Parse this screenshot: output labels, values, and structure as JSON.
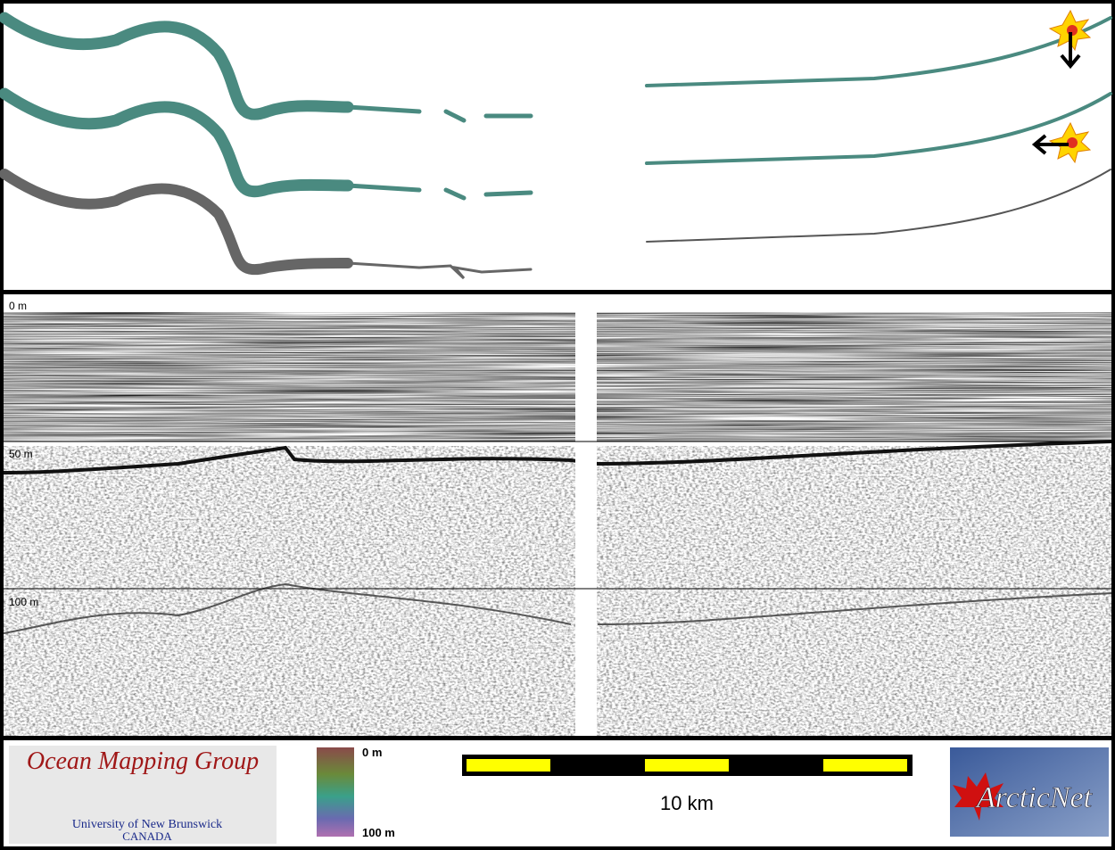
{
  "profile": {
    "depth_labels": [
      "0 m",
      "50 m",
      "100 m"
    ]
  },
  "footer": {
    "logo_title": "Ocean Mapping Group",
    "logo_university": "University of New Brunswick",
    "logo_country": "CANADA",
    "colorbar_top": "0 m",
    "colorbar_bottom": "100 m",
    "scale_label": "10 km",
    "partner_logo": "ArcticNet"
  }
}
